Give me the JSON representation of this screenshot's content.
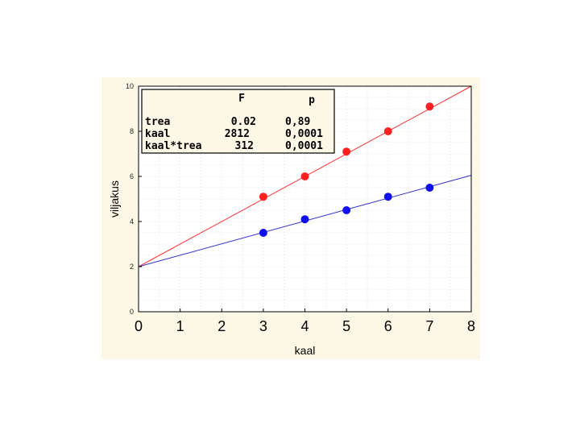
{
  "chart_data": {
    "type": "scatter",
    "xlabel": "kaal",
    "ylabel": "viljakus",
    "xlim": [
      0,
      8
    ],
    "ylim": [
      0,
      10
    ],
    "x_ticks": [
      "0",
      "1",
      "2",
      "3",
      "4",
      "5",
      "6",
      "7",
      "8"
    ],
    "y_ticks": [
      "0",
      "2",
      "4",
      "6",
      "8",
      "10"
    ],
    "grid": true,
    "series": [
      {
        "color": "#ff2020",
        "line_color": "#ff3030",
        "x": [
          3,
          4,
          5,
          6,
          7
        ],
        "y": [
          5.1,
          6.0,
          7.1,
          8.0,
          9.1
        ],
        "fit_line": {
          "x": [
            0,
            8
          ],
          "y": [
            2.0,
            10.0
          ]
        }
      },
      {
        "color": "#1010ee",
        "line_color": "#3030d0",
        "x": [
          3,
          4,
          5,
          6,
          7
        ],
        "y": [
          3.5,
          4.1,
          4.5,
          5.1,
          5.5
        ],
        "fit_line": {
          "x": [
            0,
            8
          ],
          "y": [
            2.0,
            6.05
          ]
        }
      }
    ],
    "annotation_table": {
      "headers": [
        "",
        "F",
        "p"
      ],
      "rows": [
        [
          "trea",
          "0.02",
          "0,89"
        ],
        [
          "kaal",
          "2812",
          "0,0001"
        ],
        [
          "kaal*trea",
          "312",
          "0,0001"
        ]
      ]
    }
  }
}
